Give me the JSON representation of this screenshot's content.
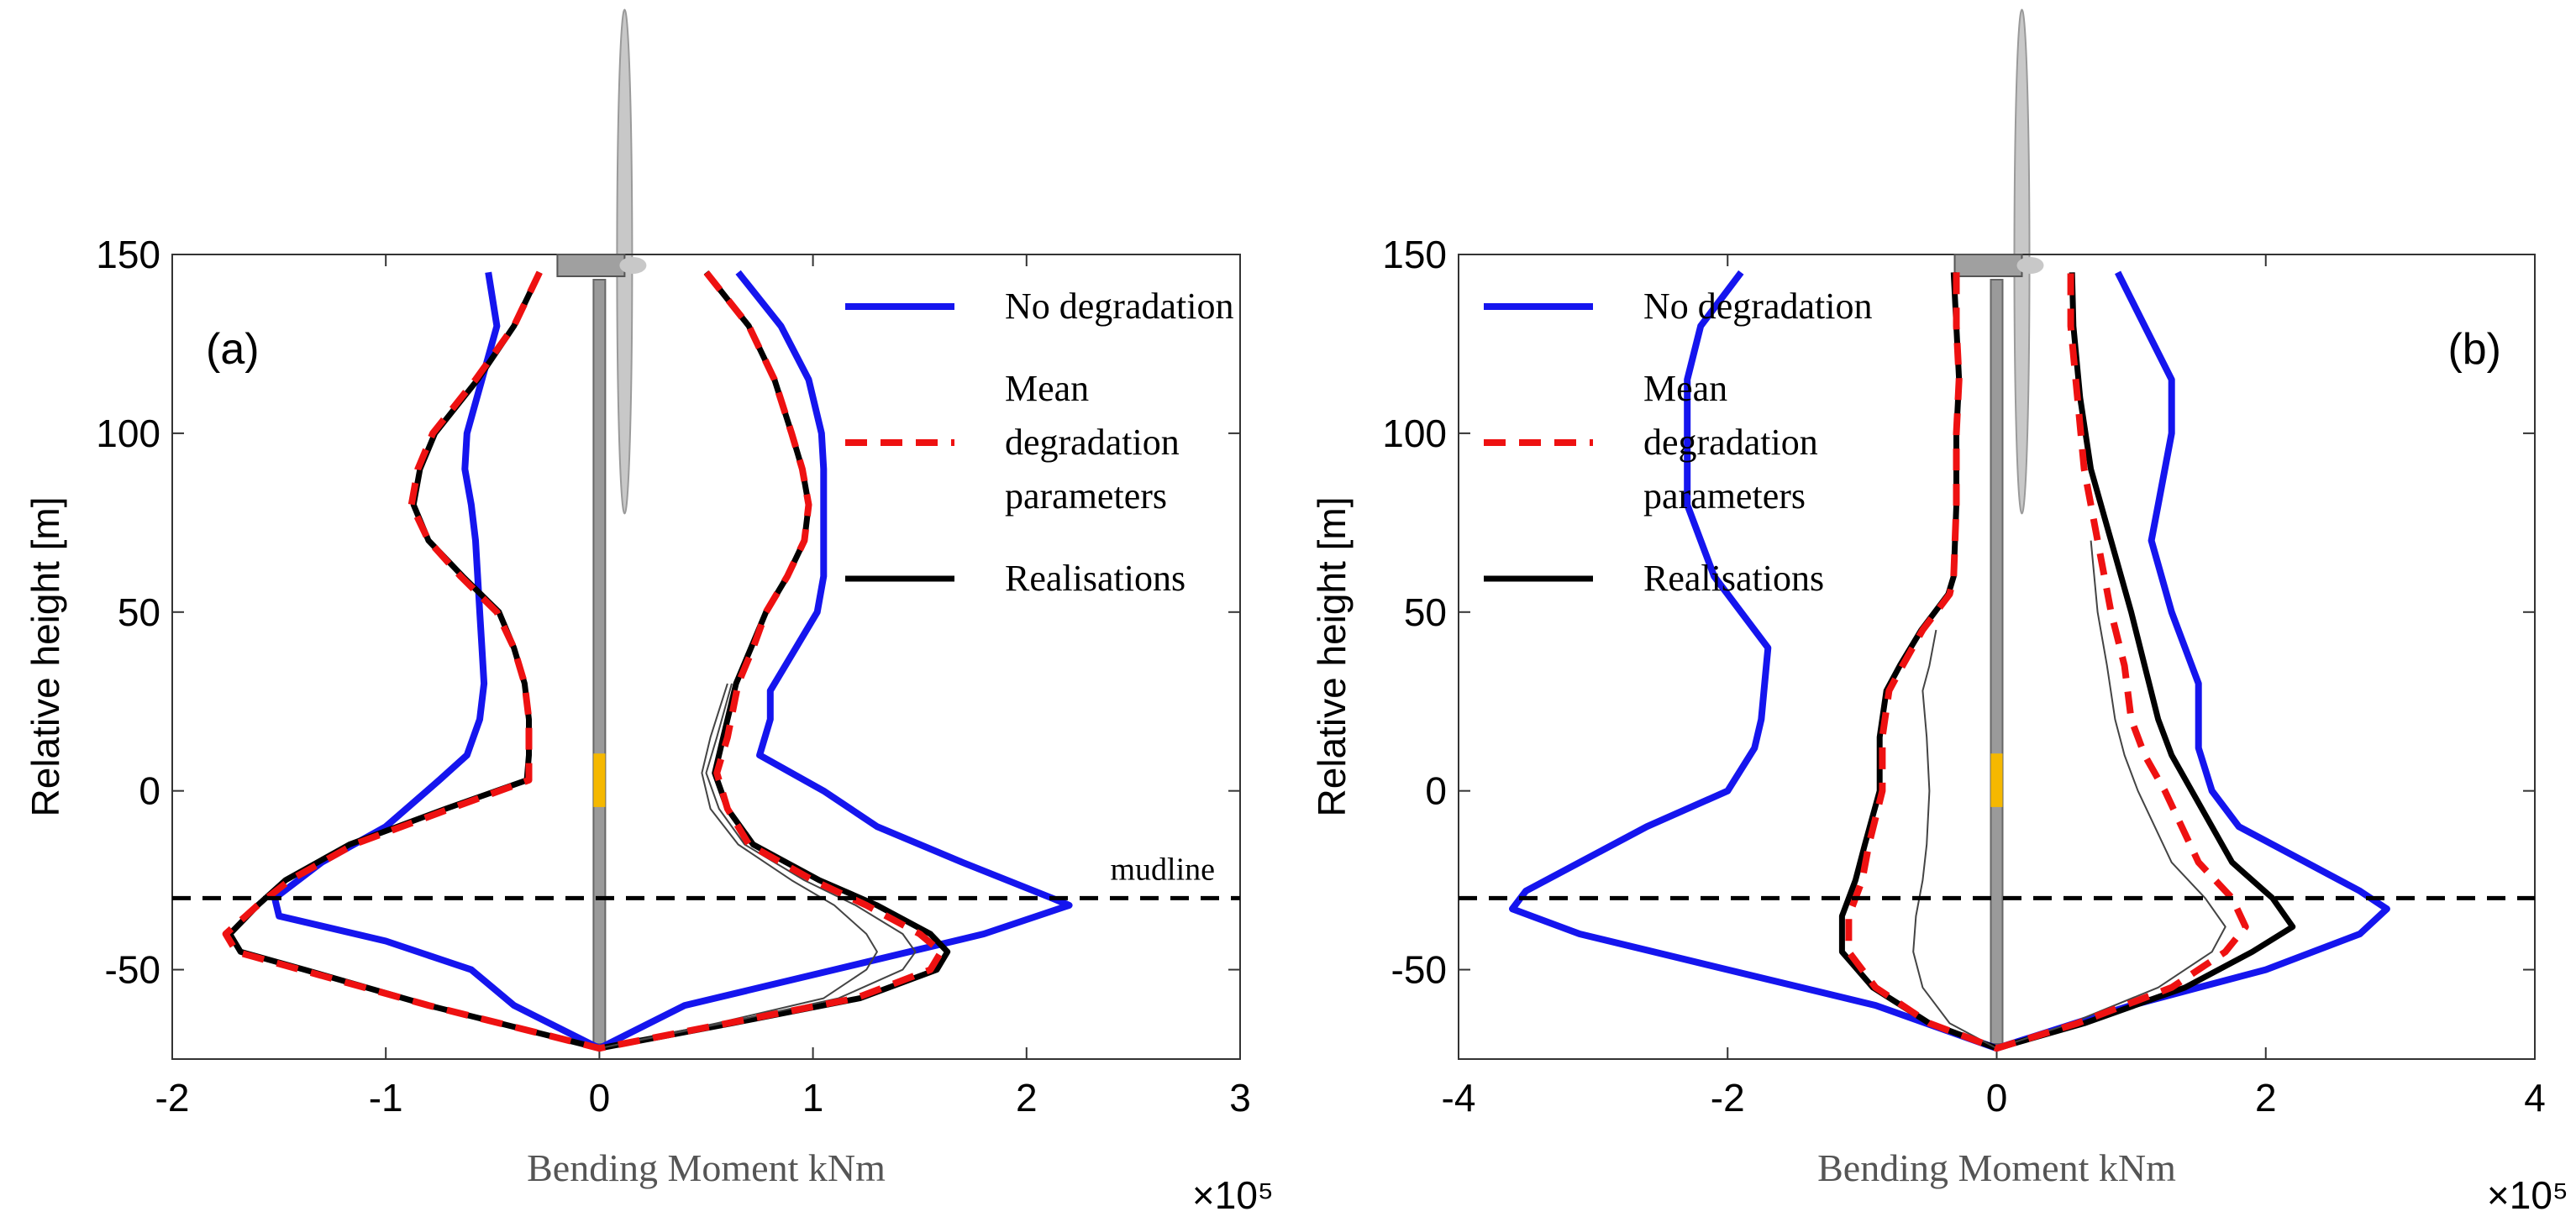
{
  "chart_data": [
    {
      "type": "line",
      "title": "(a)",
      "xlabel": "Bending Moment kNm",
      "ylabel": "Relative height [m]",
      "x_scale_label": "×10⁵",
      "xlim": [
        -2,
        3
      ],
      "ylim": [
        -75,
        150
      ],
      "xticks": [
        -2,
        -1,
        0,
        1,
        2,
        3
      ],
      "yticks": [
        -50,
        0,
        50,
        100,
        150
      ],
      "legend": "upper right",
      "hlines": [
        {
          "value": -30,
          "label": "mudline"
        }
      ],
      "series": [
        {
          "name": "No degradation",
          "color": "#1515ee",
          "width": 8,
          "heights": [
            145,
            130,
            115,
            100,
            90,
            80,
            70,
            60,
            50,
            40,
            30,
            20,
            10,
            3,
            -10,
            -20,
            -30,
            -35,
            -42,
            -50,
            -60,
            -72,
            -60,
            -50,
            -40,
            -32,
            -30,
            -20,
            -10,
            0,
            10,
            20,
            28,
            40,
            50,
            60,
            70,
            80,
            90,
            100,
            115,
            130,
            145
          ],
          "values": [
            -0.52,
            -0.48,
            -0.55,
            -0.62,
            -0.63,
            -0.6,
            -0.58,
            -0.57,
            -0.56,
            -0.55,
            -0.54,
            -0.56,
            -0.62,
            -0.75,
            -1.0,
            -1.3,
            -1.52,
            -1.5,
            -1.0,
            -0.6,
            -0.4,
            0,
            0.4,
            1.1,
            1.8,
            2.2,
            2.12,
            1.7,
            1.3,
            1.05,
            0.75,
            0.8,
            0.8,
            0.92,
            1.02,
            1.05,
            1.05,
            1.05,
            1.05,
            1.04,
            0.98,
            0.85,
            0.65
          ]
        },
        {
          "name": "Realisations",
          "color": "#000000",
          "width": 7,
          "heights": [
            145,
            130,
            115,
            100,
            90,
            80,
            70,
            60,
            50,
            40,
            30,
            20,
            10,
            3,
            -5,
            -15,
            -25,
            -32,
            -40,
            -45,
            -50,
            -60,
            -72,
            -65,
            -58,
            -50,
            -45,
            -40,
            -32,
            -25,
            -15,
            -5,
            5,
            15,
            30,
            40,
            50,
            60,
            70,
            80,
            90,
            100,
            115,
            130,
            145
          ],
          "values": [
            -0.28,
            -0.4,
            -0.57,
            -0.77,
            -0.84,
            -0.87,
            -0.8,
            -0.64,
            -0.47,
            -0.4,
            -0.35,
            -0.33,
            -0.33,
            -0.34,
            -0.72,
            -1.17,
            -1.47,
            -1.6,
            -1.73,
            -1.68,
            -1.38,
            -0.8,
            0,
            0.62,
            1.22,
            1.58,
            1.63,
            1.55,
            1.3,
            1.03,
            0.72,
            0.6,
            0.54,
            0.58,
            0.64,
            0.71,
            0.78,
            0.88,
            0.96,
            0.98,
            0.95,
            0.9,
            0.82,
            0.7,
            0.5
          ]
        },
        {
          "color": "#444444",
          "width": 2,
          "heights": [
            -72,
            -65,
            -58,
            -50,
            -45,
            -40,
            -32,
            -25,
            -15,
            -5,
            5,
            15,
            30
          ],
          "values": [
            0,
            0.55,
            1.05,
            1.25,
            1.3,
            1.25,
            1.1,
            0.9,
            0.65,
            0.52,
            0.48,
            0.52,
            0.6
          ]
        },
        {
          "color": "#444444",
          "width": 2,
          "heights": [
            -72,
            -65,
            -58,
            -50,
            -45,
            -40,
            -32,
            -25,
            -15,
            -5,
            5,
            15,
            30
          ],
          "values": [
            0,
            0.58,
            1.12,
            1.42,
            1.48,
            1.42,
            1.2,
            0.96,
            0.68,
            0.56,
            0.5,
            0.55,
            0.62
          ]
        },
        {
          "name": "Mean degradation parameters",
          "color": "#ee1111",
          "width": 8,
          "dash": true,
          "heights": [
            145,
            130,
            115,
            100,
            90,
            80,
            70,
            60,
            50,
            40,
            30,
            20,
            10,
            3,
            -5,
            -15,
            -25,
            -32,
            -40,
            -45,
            -50,
            -60,
            -72,
            -65,
            -58,
            -50,
            -45,
            -40,
            -32,
            -25,
            -15,
            -5,
            5,
            15,
            30,
            40,
            50,
            60,
            70,
            80,
            90,
            100,
            115,
            130,
            145
          ],
          "values": [
            -0.28,
            -0.4,
            -0.58,
            -0.78,
            -0.85,
            -0.88,
            -0.8,
            -0.65,
            -0.48,
            -0.4,
            -0.35,
            -0.33,
            -0.33,
            -0.33,
            -0.7,
            -1.15,
            -1.45,
            -1.6,
            -1.75,
            -1.7,
            -1.4,
            -0.8,
            0,
            0.6,
            1.2,
            1.55,
            1.6,
            1.5,
            1.25,
            1.0,
            0.7,
            0.6,
            0.55,
            0.6,
            0.65,
            0.72,
            0.78,
            0.88,
            0.96,
            0.98,
            0.95,
            0.9,
            0.82,
            0.7,
            0.5
          ]
        }
      ]
    },
    {
      "type": "line",
      "title": "(b)",
      "xlabel": "Bending Moment kNm",
      "ylabel": "Relative height [m]",
      "x_scale_label": "×10⁵",
      "xlim": [
        -4,
        4
      ],
      "ylim": [
        -75,
        150
      ],
      "xticks": [
        -4,
        -2,
        0,
        2,
        4
      ],
      "yticks": [
        -50,
        0,
        50,
        100,
        150
      ],
      "legend": "upper left",
      "hlines": [
        {
          "value": -30
        }
      ],
      "series": [
        {
          "name": "No degradation",
          "color": "#1515ee",
          "width": 8,
          "heights": [
            145,
            130,
            115,
            100,
            80,
            60,
            40,
            20,
            12,
            0,
            -10,
            -20,
            -28,
            -33,
            -40,
            -50,
            -60,
            -72,
            -60,
            -50,
            -40,
            -33,
            -28,
            -20,
            -10,
            0,
            12,
            30,
            50,
            70,
            80,
            100,
            115,
            130,
            145
          ],
          "values": [
            -1.9,
            -2.2,
            -2.3,
            -2.3,
            -2.3,
            -2.1,
            -1.7,
            -1.75,
            -1.8,
            -2.0,
            -2.6,
            -3.1,
            -3.5,
            -3.6,
            -3.1,
            -2.0,
            -0.9,
            0,
            1.0,
            2.0,
            2.7,
            2.9,
            2.7,
            2.3,
            1.8,
            1.6,
            1.5,
            1.5,
            1.3,
            1.15,
            1.2,
            1.3,
            1.3,
            1.1,
            0.9
          ]
        },
        {
          "name": "Realisations",
          "color": "#000000",
          "width": 7,
          "heights": [
            145,
            130,
            115,
            100,
            80,
            60,
            55,
            45,
            35,
            28,
            15,
            0,
            -15,
            -25,
            -35,
            -45,
            -55,
            -65,
            -72,
            -65,
            -55,
            -45,
            -38,
            -30,
            -20,
            0,
            10,
            20,
            35,
            50,
            70,
            90,
            110,
            130,
            145
          ],
          "values": [
            -0.32,
            -0.3,
            -0.28,
            -0.3,
            -0.3,
            -0.32,
            -0.36,
            -0.56,
            -0.72,
            -0.82,
            -0.87,
            -0.87,
            -0.98,
            -1.05,
            -1.15,
            -1.15,
            -0.92,
            -0.5,
            0,
            0.65,
            1.4,
            1.9,
            2.2,
            2.05,
            1.75,
            1.45,
            1.3,
            1.2,
            1.1,
            1.0,
            0.85,
            0.7,
            0.62,
            0.57,
            0.56
          ]
        },
        {
          "color": "#444444",
          "width": 2,
          "heights": [
            45,
            35,
            28,
            15,
            0,
            -15,
            -25,
            -35,
            -45,
            -55,
            -65,
            -72
          ],
          "values": [
            -0.45,
            -0.5,
            -0.55,
            -0.52,
            -0.5,
            -0.52,
            -0.55,
            -0.6,
            -0.62,
            -0.55,
            -0.35,
            0
          ]
        },
        {
          "color": "#444444",
          "width": 2,
          "heights": [
            -72,
            -65,
            -55,
            -45,
            -38,
            -30,
            -20,
            0,
            10,
            20,
            35,
            50,
            70
          ],
          "values": [
            0,
            0.55,
            1.2,
            1.6,
            1.7,
            1.55,
            1.3,
            1.05,
            0.95,
            0.88,
            0.82,
            0.75,
            0.7
          ]
        },
        {
          "name": "Mean degradation parameters",
          "color": "#ee1111",
          "width": 8,
          "dash": true,
          "heights": [
            145,
            130,
            115,
            100,
            80,
            60,
            55,
            45,
            35,
            28,
            15,
            0,
            -15,
            -25,
            -35,
            -45,
            -55,
            -65,
            -72,
            -65,
            -55,
            -45,
            -38,
            -30,
            -20,
            0,
            10,
            20,
            35,
            50,
            70,
            90,
            110,
            130,
            145
          ],
          "values": [
            -0.3,
            -0.3,
            -0.28,
            -0.3,
            -0.3,
            -0.32,
            -0.35,
            -0.55,
            -0.7,
            -0.8,
            -0.85,
            -0.85,
            -0.95,
            -1.0,
            -1.1,
            -1.1,
            -0.9,
            -0.5,
            0,
            0.6,
            1.3,
            1.7,
            1.85,
            1.75,
            1.5,
            1.25,
            1.1,
            1.0,
            0.95,
            0.85,
            0.75,
            0.65,
            0.6,
            0.55,
            0.55
          ]
        }
      ]
    }
  ]
}
